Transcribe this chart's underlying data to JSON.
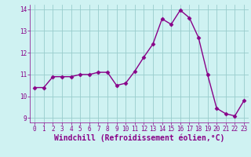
{
  "x": [
    0,
    1,
    2,
    3,
    4,
    5,
    6,
    7,
    8,
    9,
    10,
    11,
    12,
    13,
    14,
    15,
    16,
    17,
    18,
    19,
    20,
    21,
    22,
    23
  ],
  "y": [
    10.4,
    10.4,
    10.9,
    10.9,
    10.9,
    11.0,
    11.0,
    11.1,
    11.1,
    10.5,
    10.6,
    11.15,
    11.8,
    12.4,
    13.55,
    13.3,
    13.95,
    13.6,
    12.7,
    11.0,
    9.45,
    9.2,
    9.1,
    9.8
  ],
  "line_color": "#880088",
  "marker": "D",
  "marker_size": 2.5,
  "bg_color": "#cff2f2",
  "grid_color": "#99cccc",
  "xlabel": "Windchill (Refroidissement éolien,°C)",
  "xlabel_color": "#880088",
  "ylim": [
    8.8,
    14.2
  ],
  "xlim": [
    -0.5,
    23.5
  ],
  "yticks": [
    9,
    10,
    11,
    12,
    13,
    14
  ],
  "xticks": [
    0,
    1,
    2,
    3,
    4,
    5,
    6,
    7,
    8,
    9,
    10,
    11,
    12,
    13,
    14,
    15,
    16,
    17,
    18,
    19,
    20,
    21,
    22,
    23
  ],
  "tick_color": "#880088",
  "tick_fontsize": 5.5,
  "xlabel_fontsize": 7.0,
  "linewidth": 1.0
}
